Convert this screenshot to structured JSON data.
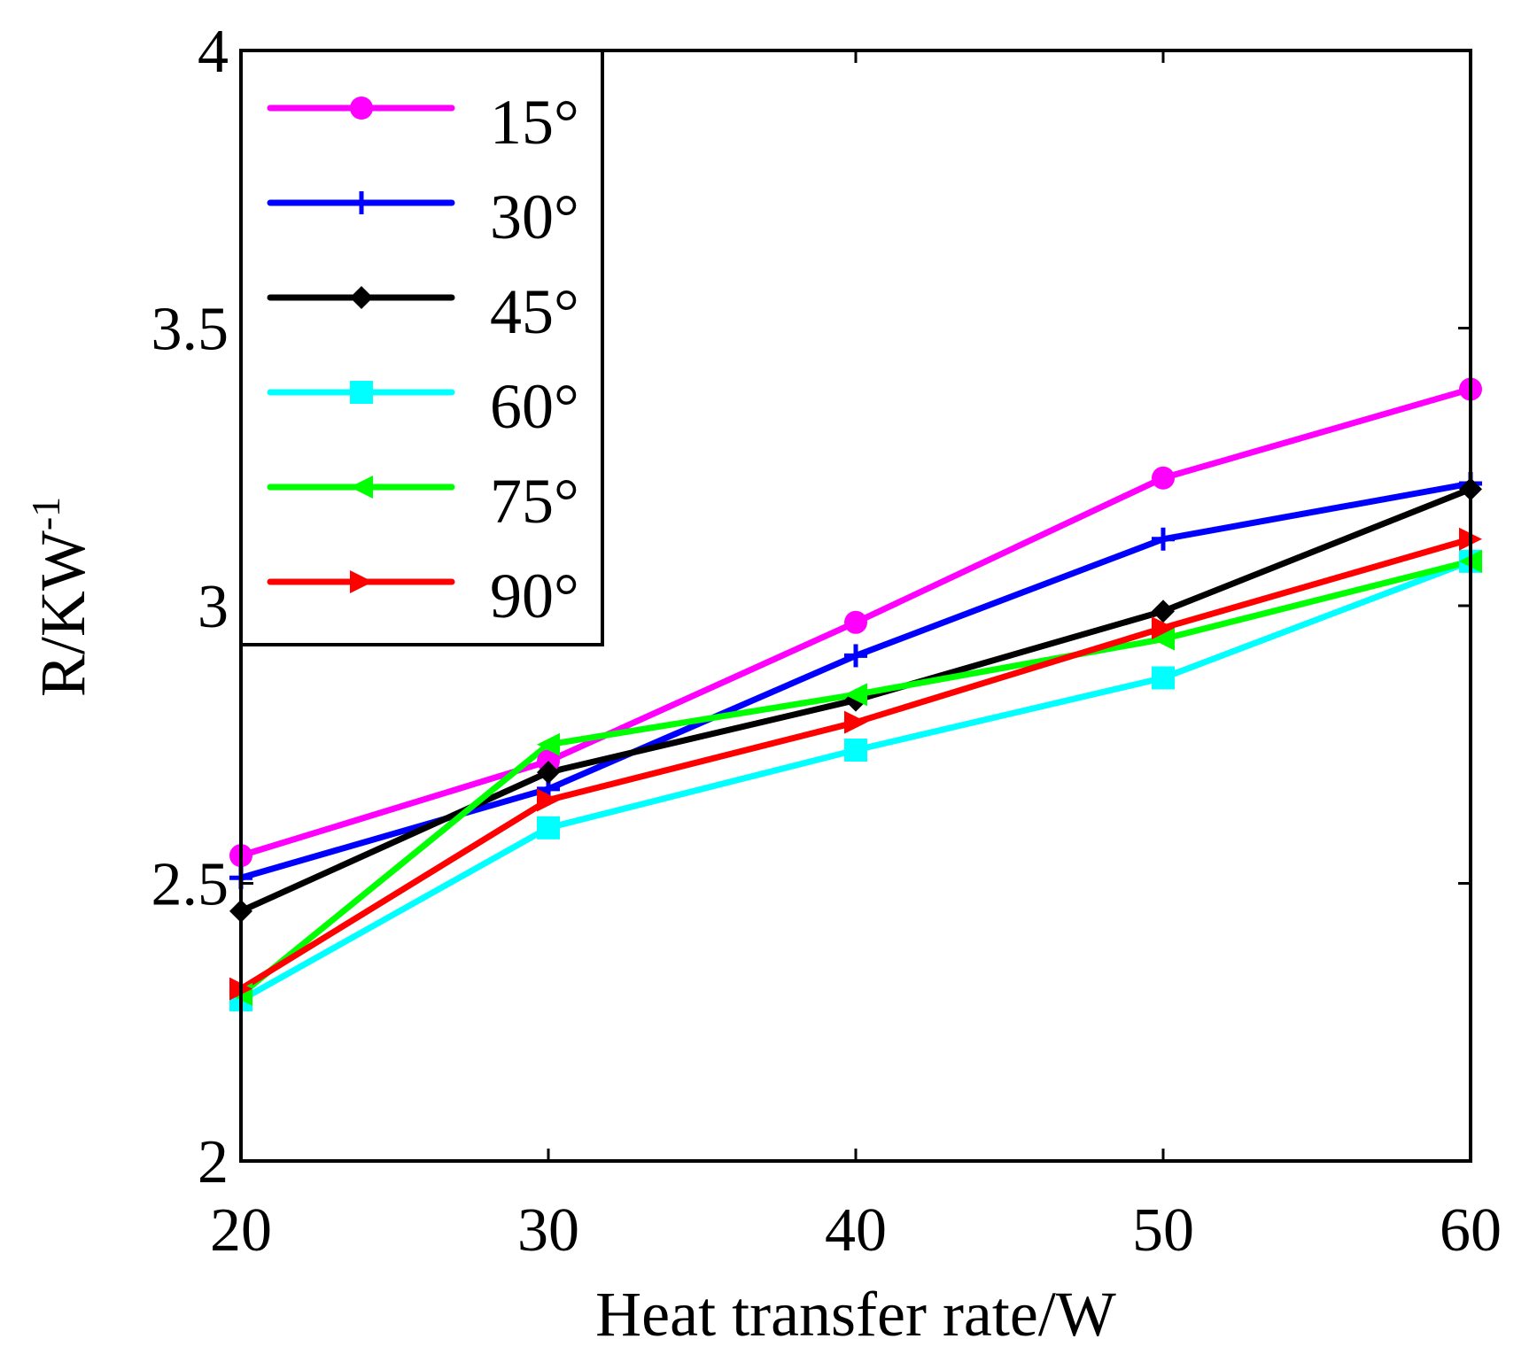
{
  "chart_data": {
    "type": "line",
    "title": "",
    "xlabel": "Heat transfer rate/W",
    "ylabel_main": "R/KW",
    "ylabel_sup": "-1",
    "x": [
      20,
      30,
      40,
      50,
      60
    ],
    "xlim": [
      20,
      60
    ],
    "ylim": [
      2,
      4
    ],
    "xticks": [
      20,
      30,
      40,
      50,
      60
    ],
    "xtick_labels": [
      "20",
      "30",
      "40",
      "50",
      "60"
    ],
    "yticks": [
      2,
      2.5,
      3,
      3.5,
      4
    ],
    "ytick_labels": [
      "2",
      "2.5",
      "3",
      "3.5",
      "4"
    ],
    "grid": false,
    "legend_position": "top-left",
    "series": [
      {
        "name": "15°",
        "color": "#ff00ff",
        "marker": "circle",
        "values": [
          2.55,
          2.72,
          2.97,
          3.23,
          3.39
        ]
      },
      {
        "name": "30°",
        "color": "#0000ff",
        "marker": "plus",
        "values": [
          2.51,
          2.67,
          2.91,
          3.12,
          3.22
        ]
      },
      {
        "name": "45°",
        "color": "#000000",
        "marker": "diamond",
        "values": [
          2.45,
          2.7,
          2.83,
          2.99,
          3.21
        ]
      },
      {
        "name": "60°",
        "color": "#00ffff",
        "marker": "square",
        "values": [
          2.29,
          2.6,
          2.74,
          2.87,
          3.08
        ]
      },
      {
        "name": "75°",
        "color": "#00ff00",
        "marker": "triangle-left",
        "values": [
          2.3,
          2.75,
          2.84,
          2.94,
          3.08
        ]
      },
      {
        "name": "90°",
        "color": "#ff0000",
        "marker": "triangle-right",
        "values": [
          2.31,
          2.65,
          2.79,
          2.96,
          3.12
        ]
      }
    ]
  }
}
